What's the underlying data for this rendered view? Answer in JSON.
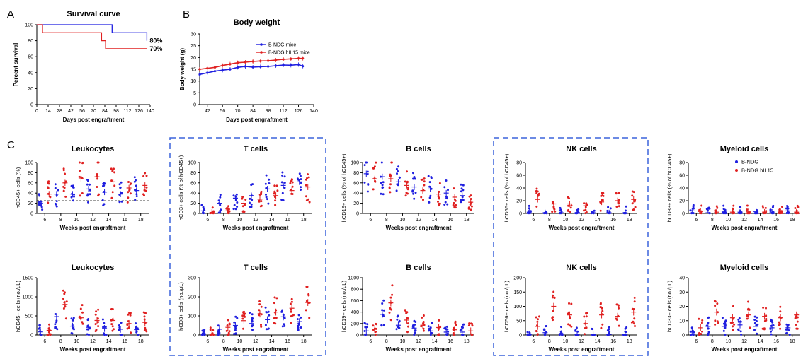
{
  "panels": {
    "a": "A",
    "b": "B",
    "c": "C"
  },
  "chart_data": [
    {
      "id": "survival",
      "type": "line",
      "title": "Survival curve",
      "xlabel": "Days post engraftment",
      "ylabel": "Percent survival",
      "xlim": [
        0,
        140
      ],
      "ylim": [
        0,
        100
      ],
      "xticks": [
        0,
        14,
        28,
        42,
        56,
        70,
        84,
        98,
        112,
        126,
        140
      ],
      "yticks": [
        0,
        20,
        40,
        60,
        80,
        100
      ],
      "series": [
        {
          "color": "#1f1fe0",
          "points": [
            [
              0,
              100
            ],
            [
              93,
              100
            ],
            [
              93,
              90
            ],
            [
              136,
              90
            ],
            [
              136,
              80
            ]
          ],
          "end_label": "80%"
        },
        {
          "color": "#e02020",
          "points": [
            [
              0,
              100
            ],
            [
              7,
              100
            ],
            [
              7,
              90
            ],
            [
              80,
              90
            ],
            [
              80,
              80
            ],
            [
              85,
              80
            ],
            [
              85,
              70
            ],
            [
              136,
              70
            ]
          ],
          "end_label": "70%"
        }
      ]
    },
    {
      "id": "bodyweight",
      "type": "line",
      "title": "Body weight",
      "xlabel": "Days post engraftment",
      "ylabel": "Body weight (g)",
      "xlim": [
        35,
        140
      ],
      "ylim": [
        0,
        30
      ],
      "xticks": [
        42,
        56,
        70,
        84,
        98,
        112,
        126,
        140
      ],
      "yticks": [
        0,
        5,
        10,
        15,
        20,
        25,
        30
      ],
      "legend_position": "top-right",
      "series": [
        {
          "name": "B-NDG mice",
          "color": "#1f1fe0",
          "x": [
            35,
            42,
            49,
            56,
            63,
            70,
            77,
            84,
            91,
            98,
            105,
            112,
            119,
            126,
            130
          ],
          "y": [
            12.8,
            13.5,
            14.2,
            14.6,
            15.0,
            15.8,
            16.2,
            15.9,
            16.1,
            16.2,
            16.5,
            16.8,
            16.7,
            17.0,
            16.3
          ]
        },
        {
          "name": "B-NDG hIL15 mice",
          "color": "#e02020",
          "x": [
            35,
            42,
            49,
            56,
            63,
            70,
            77,
            84,
            91,
            98,
            105,
            112,
            119,
            126,
            130
          ],
          "y": [
            15.0,
            15.4,
            15.8,
            16.6,
            17.2,
            17.8,
            18.0,
            18.3,
            18.5,
            18.6,
            18.9,
            19.2,
            19.4,
            19.6,
            19.6
          ]
        }
      ]
    },
    {
      "id": "leuk_pct",
      "type": "scatter",
      "title": "Leukocytes",
      "xlabel": "Weeks post engraftment",
      "ylabel": "hCD45+ cells (%)",
      "ylim": [
        0,
        100
      ],
      "yticks": [
        0,
        20,
        40,
        60,
        80,
        100
      ],
      "ytick_labels": [
        "0",
        "20",
        "40",
        "60",
        "80",
        "100"
      ],
      "weeks": [
        "6",
        "8",
        "10",
        "12",
        "14",
        "16",
        "18"
      ],
      "dashed_line": 25,
      "framed": false,
      "bndg": [
        20,
        38,
        38,
        48,
        42,
        38,
        45
      ],
      "il15": [
        38,
        60,
        68,
        72,
        62,
        50,
        55
      ]
    },
    {
      "id": "t_pct",
      "type": "scatter",
      "title": "T cells",
      "xlabel": "Weeks post engraftment",
      "ylabel": "hCD3+ cells (% of hCD45+)",
      "ylim": [
        0,
        100
      ],
      "yticks": [
        0,
        20,
        40,
        60,
        80,
        100
      ],
      "ytick_labels": [
        "0",
        "20",
        "40",
        "60",
        "80",
        "100"
      ],
      "weeks": [
        "6",
        "8",
        "10",
        "12",
        "14",
        "16",
        "18"
      ],
      "framed": true,
      "bndg": [
        5,
        20,
        30,
        35,
        48,
        55,
        62
      ],
      "il15": [
        2,
        5,
        20,
        28,
        35,
        45,
        52
      ]
    },
    {
      "id": "b_pct",
      "type": "scatter",
      "title": "B cells",
      "xlabel": "Weeks post engraftment",
      "ylabel": "hCD19+ cells (% of hCD45+)",
      "ylim": [
        0,
        100
      ],
      "yticks": [
        0,
        20,
        40,
        60,
        80,
        100
      ],
      "ytick_labels": [
        "0",
        "20",
        "40",
        "60",
        "80",
        "100"
      ],
      "weeks": [
        "6",
        "8",
        "10",
        "12",
        "14",
        "16",
        "18"
      ],
      "framed": false,
      "bndg": [
        78,
        72,
        62,
        52,
        48,
        40,
        35
      ],
      "il15": [
        68,
        68,
        55,
        45,
        38,
        32,
        22
      ]
    },
    {
      "id": "nk_pct",
      "type": "scatter",
      "title": "NK cells",
      "xlabel": "Weeks post engraftment",
      "ylabel": "hCD56+ cells (% of hCD45+)",
      "ylim": [
        0,
        80
      ],
      "yticks": [
        0,
        20,
        40,
        60,
        80
      ],
      "ytick_labels": [
        "0",
        "20",
        "40",
        "60",
        "80"
      ],
      "weeks": [
        "6",
        "8",
        "10",
        "12",
        "14",
        "16",
        "18"
      ],
      "framed": true,
      "bndg": [
        2,
        1,
        1,
        1,
        1,
        1,
        1
      ],
      "il15": [
        22,
        15,
        15,
        12,
        18,
        20,
        22
      ]
    },
    {
      "id": "my_pct",
      "type": "scatter",
      "title": "Myeloid cells",
      "xlabel": "Weeks post engraftment",
      "ylabel": "hCD33+ cells (% of hCD45+)",
      "ylim": [
        0,
        80
      ],
      "yticks": [
        0,
        20,
        40,
        60,
        80
      ],
      "ytick_labels": [
        "0",
        "20",
        "40",
        "60",
        "80"
      ],
      "weeks": [
        "6",
        "8",
        "10",
        "12",
        "14",
        "16",
        "18"
      ],
      "framed": false,
      "legend": [
        "B-NDG",
        "B-NDG hIL15"
      ],
      "bndg": [
        4,
        1,
        2,
        2,
        3,
        2,
        4
      ],
      "il15": [
        3,
        2,
        2,
        3,
        2,
        2,
        2
      ]
    },
    {
      "id": "leuk_abs",
      "type": "scatter",
      "title": "Leukocytes",
      "xlabel": "Weeks post engraftment",
      "ylabel": "hCD45+ cells (no./μL)",
      "ylim": [
        0,
        1500
      ],
      "yticks": [
        0,
        500,
        1000,
        1500
      ],
      "ytick_labels": [
        "0",
        "500",
        "1000",
        "1500"
      ],
      "weeks": [
        "6",
        "8",
        "10",
        "12",
        "14",
        "16",
        "18"
      ],
      "framed": false,
      "bndg": [
        80,
        480,
        230,
        200,
        170,
        150,
        140
      ],
      "il15": [
        120,
        800,
        450,
        380,
        380,
        300,
        330
      ]
    },
    {
      "id": "t_abs",
      "type": "scatter",
      "title": "T cells",
      "xlabel": "Weeks post engraftment",
      "ylabel": "hCD3+ cells (no./μL)",
      "ylim": [
        0,
        300
      ],
      "yticks": [
        0,
        100,
        200,
        300
      ],
      "ytick_labels": [
        "0",
        "100",
        "200",
        "300"
      ],
      "weeks": [
        "6",
        "8",
        "10",
        "12",
        "14",
        "16",
        "18"
      ],
      "framed": true,
      "bndg": [
        2,
        30,
        50,
        60,
        80,
        95,
        70
      ],
      "il15": [
        2,
        40,
        75,
        110,
        120,
        140,
        170
      ]
    },
    {
      "id": "b_abs",
      "type": "scatter",
      "title": "B cells",
      "xlabel": "Weeks post engraftment",
      "ylabel": "hCD19+ cells (no./μL)",
      "ylim": [
        0,
        1000
      ],
      "yticks": [
        0,
        200,
        400,
        600,
        800,
        1000
      ],
      "ytick_labels": [
        "0",
        "200",
        "400",
        "600",
        "800",
        "1000"
      ],
      "weeks": [
        "6",
        "8",
        "10",
        "12",
        "14",
        "16",
        "18"
      ],
      "framed": false,
      "bndg": [
        70,
        360,
        170,
        120,
        70,
        50,
        50
      ],
      "il15": [
        100,
        560,
        260,
        170,
        130,
        90,
        70
      ]
    },
    {
      "id": "nk_abs",
      "type": "scatter",
      "title": "NK cells",
      "xlabel": "Weeks post engraftment",
      "ylabel": "hCD56+ cells (no./μL)",
      "ylim": [
        0,
        200
      ],
      "yticks": [
        0,
        50,
        100,
        150,
        200
      ],
      "ytick_labels": [
        "0",
        "50",
        "100",
        "150",
        "200"
      ],
      "weeks": [
        "6",
        "8",
        "10",
        "12",
        "14",
        "16",
        "18"
      ],
      "framed": true,
      "bndg": [
        1,
        8,
        4,
        2,
        2,
        2,
        2
      ],
      "il15": [
        30,
        100,
        70,
        40,
        70,
        65,
        80
      ]
    },
    {
      "id": "my_abs",
      "type": "scatter",
      "title": "Myeloid cells",
      "xlabel": "Weeks post engraftment",
      "ylabel": "hCD33+ cells (no./μL)",
      "ylim": [
        0,
        40
      ],
      "yticks": [
        0,
        10,
        20,
        30,
        40
      ],
      "ytick_labels": [
        "0",
        "10",
        "20",
        "30",
        "40"
      ],
      "weeks": [
        "6",
        "8",
        "10",
        "12",
        "14",
        "16",
        "18"
      ],
      "framed": false,
      "bndg": [
        2,
        6,
        6,
        7,
        6,
        5,
        5
      ],
      "il15": [
        5,
        16,
        12,
        14,
        13,
        12,
        14
      ]
    }
  ]
}
